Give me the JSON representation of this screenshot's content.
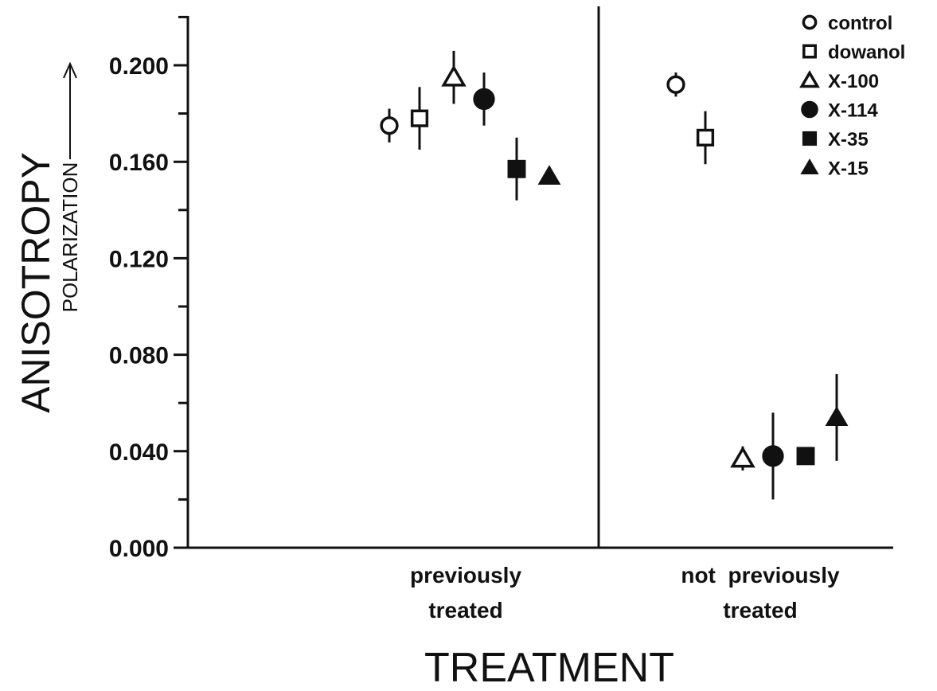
{
  "chart_data": {
    "type": "scatter",
    "title": "",
    "ylabel": "ANISOTROPY",
    "ylabel_sub": "POLARIZATION",
    "xlabel": "TREATMENT",
    "ylim": [
      0.0,
      0.2
    ],
    "yticks": [
      "0.000",
      "0.040",
      "0.080",
      "0.120",
      "0.160",
      "0.200"
    ],
    "categories": [
      {
        "line1": "previously",
        "line2": "treated"
      },
      {
        "line1": "not  previously",
        "line2": "treated"
      }
    ],
    "legend_position": "top-right",
    "series": [
      {
        "name": "control",
        "marker": "circle-open",
        "values": [
          0.175,
          0.192
        ],
        "err": [
          0.007,
          0.005
        ]
      },
      {
        "name": "dowanol",
        "marker": "square-open",
        "values": [
          0.178,
          0.17
        ],
        "err": [
          0.013,
          0.011
        ]
      },
      {
        "name": "X-100",
        "marker": "triangle-open",
        "values": [
          0.195,
          0.037
        ],
        "err": [
          0.011,
          0.005
        ]
      },
      {
        "name": "X-114",
        "marker": "circle-filled",
        "values": [
          0.186,
          0.038
        ],
        "err": [
          0.011,
          0.018
        ]
      },
      {
        "name": "X-35",
        "marker": "square-filled",
        "values": [
          0.157,
          0.038
        ],
        "err": [
          0.013,
          0.002
        ]
      },
      {
        "name": "X-15",
        "marker": "triangle-filled",
        "values": [
          0.154,
          0.054
        ],
        "err": [
          0.002,
          0.018
        ]
      }
    ]
  }
}
